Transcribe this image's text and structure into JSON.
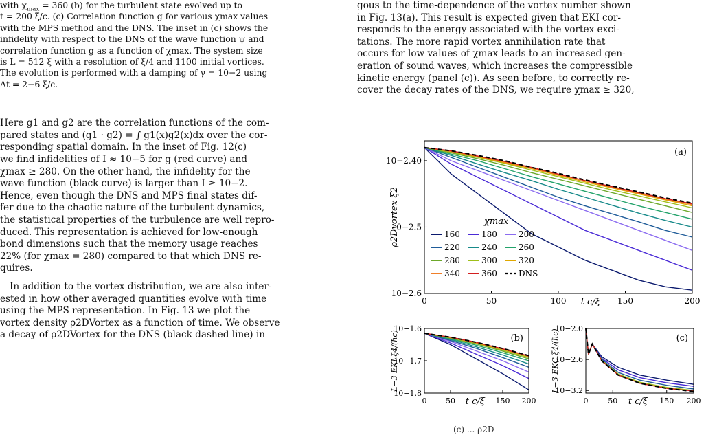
{
  "left": {
    "caption": {
      "l1a": "with χ",
      "l1b": "max",
      "l1c": " = 360 (b) for the turbulent state evolved up to",
      "l2": "t = 200 ξ/c. (c) Correlation function g for various χmax values",
      "l3": "with the MPS method and the DNS. The inset in (c) shows the",
      "l4": "infidelity with respect to the DNS of the wave function ψ and",
      "l5": "correlation function g as a function of χmax. The system size",
      "l6": "is L = 512 ξ with a resolution of ξ/4 and 1100 initial vortices.",
      "l7": "The evolution is performed with a damping of γ = 10−2 using",
      "l8": "Δt = 2−6 ξ/c."
    },
    "para1": [
      "Here g1 and g2 are the correlation functions of the com-",
      "pared states and (g1 · g2) = ∫ g1(x)g2(x)dx over the cor-",
      "responding spatial domain. In the inset of Fig. 12(c)",
      "we find infidelities of I ≈ 10−5 for g (red curve) and",
      "χmax ≥ 280. On the other hand, the infidelity for the",
      "wave function (black curve) is larger than I ≥ 10−2.",
      "Hence, even though the DNS and MPS final states dif-",
      "fer due to the chaotic nature of the turbulent dynamics,",
      "the statistical properties of the turbulence are well repro-",
      "duced. This representation is achieved for low-enough",
      "bond dimensions such that the memory usage reaches",
      "22% (for χmax = 280) compared to that which DNS re-",
      "quires."
    ],
    "para2": [
      "In addition to the vortex distribution, we are also inter-",
      "ested in how other averaged quantities evolve with time",
      "using the MPS representation. In Fig. 13 we plot the",
      "vortex density ρ2DVortex as a function of time. We observe",
      "a decay of ρ2DVortex for the DNS (black dashed line) in"
    ]
  },
  "right": {
    "para": [
      "gous to the time-dependence of the vortex number shown",
      "in Fig. 13(a). This result is expected given that EKI cor-",
      "responds to the energy associated with the vortex exci-",
      "tations. The more rapid vortex annihilation rate that",
      "occurs for low values of χmax leads to an increased gen-",
      "eration of sound waves, which increases the compressible",
      "kinetic energy (panel (c)). As seen before, to correctly re-",
      "cover the decay rates of the DNS, we require χmax ≥ 320,"
    ],
    "bottom_fragment": "(c)    ...    ρ2D"
  },
  "chart_data": [
    {
      "type": "line",
      "panel": "(a)",
      "xlabel": "t c/ξ",
      "ylabel": "ρ2Dvortex ξ2",
      "x_ticks": [
        "0",
        "50",
        "100",
        "150",
        "200"
      ],
      "y_ticks": [
        "10−2.40",
        "10−2.5",
        "10−2.6"
      ],
      "xlim": [
        0,
        200
      ],
      "ylim_log10": [
        -2.6,
        -2.37
      ],
      "legend_title": "χmax",
      "x": [
        0,
        20,
        40,
        60,
        80,
        100,
        120,
        140,
        160,
        180,
        200
      ],
      "series": [
        {
          "name": "160",
          "color": "#0b1a6e",
          "values": [
            -2.38,
            -2.42,
            -2.45,
            -2.48,
            -2.51,
            -2.53,
            -2.55,
            -2.565,
            -2.58,
            -2.59,
            -2.595
          ]
        },
        {
          "name": "180",
          "color": "#4a2bd6",
          "values": [
            -2.38,
            -2.405,
            -2.425,
            -2.445,
            -2.465,
            -2.485,
            -2.505,
            -2.52,
            -2.535,
            -2.55,
            -2.565
          ]
        },
        {
          "name": "200",
          "color": "#8b6cf0",
          "values": [
            -2.38,
            -2.4,
            -2.415,
            -2.43,
            -2.445,
            -2.46,
            -2.475,
            -2.49,
            -2.505,
            -2.52,
            -2.535
          ]
        },
        {
          "name": "220",
          "color": "#1f5c99",
          "values": [
            -2.38,
            -2.395,
            -2.41,
            -2.425,
            -2.44,
            -2.455,
            -2.468,
            -2.48,
            -2.492,
            -2.505,
            -2.515
          ]
        },
        {
          "name": "240",
          "color": "#178a8a",
          "values": [
            -2.38,
            -2.392,
            -2.405,
            -2.418,
            -2.43,
            -2.443,
            -2.455,
            -2.467,
            -2.479,
            -2.49,
            -2.5
          ]
        },
        {
          "name": "260",
          "color": "#23a36b",
          "values": [
            -2.38,
            -2.39,
            -2.4,
            -2.412,
            -2.424,
            -2.435,
            -2.446,
            -2.457,
            -2.468,
            -2.478,
            -2.488
          ]
        },
        {
          "name": "280",
          "color": "#6ca82a",
          "values": [
            -2.38,
            -2.388,
            -2.397,
            -2.407,
            -2.418,
            -2.428,
            -2.438,
            -2.448,
            -2.458,
            -2.468,
            -2.478
          ]
        },
        {
          "name": "300",
          "color": "#9fbf1a",
          "values": [
            -2.38,
            -2.387,
            -2.395,
            -2.404,
            -2.414,
            -2.424,
            -2.434,
            -2.444,
            -2.453,
            -2.462,
            -2.471
          ]
        },
        {
          "name": "320",
          "color": "#e0a800",
          "values": [
            -2.38,
            -2.386,
            -2.394,
            -2.403,
            -2.412,
            -2.422,
            -2.432,
            -2.441,
            -2.45,
            -2.459,
            -2.468
          ]
        },
        {
          "name": "340",
          "color": "#f07f2a",
          "values": [
            -2.38,
            -2.386,
            -2.393,
            -2.402,
            -2.411,
            -2.421,
            -2.43,
            -2.44,
            -2.449,
            -2.458,
            -2.466
          ]
        },
        {
          "name": "360",
          "color": "#d21f1f",
          "values": [
            -2.38,
            -2.385,
            -2.393,
            -2.401,
            -2.41,
            -2.42,
            -2.43,
            -2.439,
            -2.448,
            -2.457,
            -2.465
          ]
        },
        {
          "name": "DNS",
          "color": "#000000",
          "dashed": true,
          "values": [
            -2.38,
            -2.385,
            -2.392,
            -2.4,
            -2.41,
            -2.419,
            -2.429,
            -2.438,
            -2.447,
            -2.456,
            -2.464
          ]
        }
      ]
    },
    {
      "type": "line",
      "panel": "(b)",
      "xlabel": "t c/ξ",
      "ylabel": "L−3 EKI ξ4/(ħc)",
      "x_ticks": [
        "0",
        "50",
        "150",
        "200"
      ],
      "y_ticks": [
        "10−1.6",
        "10−1.7",
        "10−1.8"
      ],
      "xlim": [
        0,
        200
      ],
      "ylim_log10": [
        -1.8,
        -1.6
      ],
      "x": [
        0,
        50,
        100,
        150,
        200
      ],
      "series": [
        {
          "name": "160",
          "color": "#0b1a6e",
          "values": [
            -1.615,
            -1.65,
            -1.695,
            -1.74,
            -1.79
          ]
        },
        {
          "name": "180",
          "color": "#4a2bd6",
          "values": [
            -1.615,
            -1.645,
            -1.68,
            -1.715,
            -1.755
          ]
        },
        {
          "name": "200",
          "color": "#8b6cf0",
          "values": [
            -1.615,
            -1.64,
            -1.67,
            -1.7,
            -1.735
          ]
        },
        {
          "name": "220",
          "color": "#1f5c99",
          "values": [
            -1.615,
            -1.637,
            -1.662,
            -1.69,
            -1.72
          ]
        },
        {
          "name": "240",
          "color": "#178a8a",
          "values": [
            -1.615,
            -1.634,
            -1.657,
            -1.682,
            -1.71
          ]
        },
        {
          "name": "260",
          "color": "#23a36b",
          "values": [
            -1.615,
            -1.632,
            -1.652,
            -1.675,
            -1.7
          ]
        },
        {
          "name": "280",
          "color": "#6ca82a",
          "values": [
            -1.615,
            -1.63,
            -1.648,
            -1.67,
            -1.694
          ]
        },
        {
          "name": "300",
          "color": "#9fbf1a",
          "values": [
            -1.615,
            -1.629,
            -1.646,
            -1.667,
            -1.69
          ]
        },
        {
          "name": "320",
          "color": "#e0a800",
          "values": [
            -1.615,
            -1.628,
            -1.645,
            -1.665,
            -1.687
          ]
        },
        {
          "name": "340",
          "color": "#f07f2a",
          "values": [
            -1.615,
            -1.628,
            -1.644,
            -1.664,
            -1.686
          ]
        },
        {
          "name": "360",
          "color": "#d21f1f",
          "values": [
            -1.615,
            -1.627,
            -1.643,
            -1.663,
            -1.685
          ]
        },
        {
          "name": "DNS",
          "color": "#000000",
          "dashed": true,
          "values": [
            -1.615,
            -1.627,
            -1.643,
            -1.662,
            -1.684
          ]
        }
      ]
    },
    {
      "type": "line",
      "panel": "(c)",
      "xlabel": "t c/ξ",
      "ylabel": "L−3 EKC ξ4/(ħc)",
      "x_ticks": [
        "0",
        "50",
        "150",
        "200"
      ],
      "y_ticks": [
        "10−2.0",
        "10−2.6",
        "10−3.2"
      ],
      "xlim": [
        0,
        200
      ],
      "ylim_log10": [
        -3.25,
        -2.0
      ],
      "x": [
        0,
        5,
        12,
        30,
        60,
        100,
        150,
        200
      ],
      "series": [
        {
          "name": "160",
          "color": "#0b1a6e",
          "values": [
            -2.0,
            -2.5,
            -2.3,
            -2.55,
            -2.75,
            -2.9,
            -3.0,
            -3.08
          ]
        },
        {
          "name": "180",
          "color": "#4a2bd6",
          "values": [
            -2.0,
            -2.5,
            -2.3,
            -2.58,
            -2.8,
            -2.95,
            -3.05,
            -3.12
          ]
        },
        {
          "name": "220",
          "color": "#1f5c99",
          "values": [
            -2.0,
            -2.5,
            -2.3,
            -2.6,
            -2.85,
            -3.0,
            -3.1,
            -3.17
          ]
        },
        {
          "name": "300",
          "color": "#9fbf1a",
          "values": [
            -2.0,
            -2.5,
            -2.3,
            -2.62,
            -2.88,
            -3.04,
            -3.14,
            -3.2
          ]
        },
        {
          "name": "360",
          "color": "#d21f1f",
          "values": [
            -2.0,
            -2.5,
            -2.3,
            -2.63,
            -2.9,
            -3.06,
            -3.16,
            -3.21
          ]
        },
        {
          "name": "DNS",
          "color": "#000000",
          "dashed": true,
          "values": [
            -2.0,
            -2.5,
            -2.3,
            -2.63,
            -2.9,
            -3.06,
            -3.16,
            -3.22
          ]
        }
      ]
    }
  ]
}
